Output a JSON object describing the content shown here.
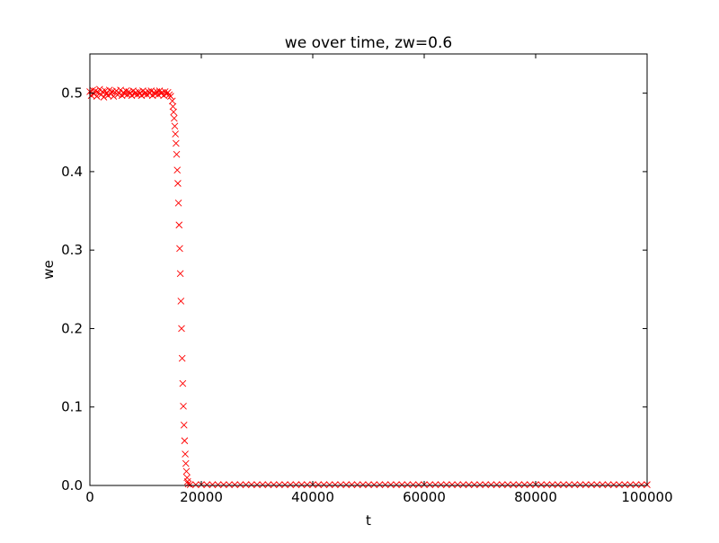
{
  "chart_data": {
    "type": "scatter",
    "title": "we over time, zw=0.6",
    "xlabel": "t",
    "ylabel": "we",
    "xlim": [
      0,
      100000
    ],
    "ylim": [
      0,
      0.55
    ],
    "xticks": [
      0,
      20000,
      40000,
      60000,
      80000,
      100000
    ],
    "xtick_labels": [
      "0",
      "20000",
      "40000",
      "60000",
      "80000",
      "100000"
    ],
    "yticks": [
      0,
      0.1,
      0.2,
      0.3,
      0.4,
      0.5
    ],
    "ytick_labels": [
      "0.0",
      "0.1",
      "0.2",
      "0.3",
      "0.4",
      "0.5"
    ],
    "grid": false,
    "marker": "x",
    "color": "#ff0000",
    "series": [
      {
        "t": [
          0,
          250,
          500,
          750,
          1000,
          1250,
          1500,
          1750,
          2000,
          2250,
          2500,
          2750,
          3000,
          3250,
          3500,
          3750,
          4000,
          4250,
          4500,
          4750,
          5000,
          5250,
          5500,
          5750,
          6000,
          6250,
          6500,
          6750,
          7000,
          7250,
          7500,
          7750,
          8000,
          8250,
          8500,
          8750,
          9000,
          9250,
          9500,
          9750,
          10000,
          10250,
          10500,
          10750,
          11000,
          11250,
          11500,
          11750,
          12000,
          12250,
          12500,
          12750,
          13000,
          13250,
          13500,
          13750,
          14000,
          14250,
          14500,
          14800,
          14910,
          15020,
          15130,
          15240,
          15350,
          15460,
          15570,
          15680,
          15790,
          15900,
          16010,
          16120,
          16230,
          16340,
          16450,
          16560,
          16670,
          16780,
          16890,
          17000,
          17110,
          17220,
          17330,
          17440,
          17550,
          17660,
          18000,
          19000,
          20000,
          21000,
          22000,
          23000,
          24000,
          25000,
          26000,
          27000,
          28000,
          29000,
          30000,
          31000,
          32000,
          33000,
          34000,
          35000,
          36000,
          37000,
          38000,
          39000,
          40000,
          41000,
          42000,
          43000,
          44000,
          45000,
          46000,
          47000,
          48000,
          49000,
          50000,
          51000,
          52000,
          53000,
          54000,
          55000,
          56000,
          57000,
          58000,
          59000,
          60000,
          61000,
          62000,
          63000,
          64000,
          65000,
          66000,
          67000,
          68000,
          69000,
          70000,
          71000,
          72000,
          73000,
          74000,
          75000,
          76000,
          77000,
          78000,
          79000,
          80000,
          81000,
          82000,
          83000,
          84000,
          85000,
          86000,
          87000,
          88000,
          89000,
          90000,
          91000,
          92000,
          93000,
          94000,
          95000,
          96000,
          97000,
          98000,
          99000,
          100000
        ],
        "we": [
          0.502,
          0.497,
          0.504,
          0.499,
          0.503,
          0.496,
          0.501,
          0.505,
          0.498,
          0.502,
          0.495,
          0.503,
          0.5,
          0.497,
          0.504,
          0.499,
          0.502,
          0.496,
          0.501,
          0.503,
          0.498,
          0.5,
          0.504,
          0.497,
          0.501,
          0.499,
          0.503,
          0.498,
          0.502,
          0.5,
          0.497,
          0.503,
          0.499,
          0.501,
          0.498,
          0.502,
          0.5,
          0.497,
          0.503,
          0.499,
          0.501,
          0.498,
          0.502,
          0.5,
          0.503,
          0.497,
          0.501,
          0.499,
          0.502,
          0.498,
          0.503,
          0.5,
          0.501,
          0.497,
          0.502,
          0.499,
          0.501,
          0.498,
          0.496,
          0.49,
          0.483,
          0.476,
          0.468,
          0.458,
          0.448,
          0.436,
          0.422,
          0.402,
          0.385,
          0.36,
          0.332,
          0.302,
          0.27,
          0.235,
          0.2,
          0.162,
          0.13,
          0.101,
          0.077,
          0.057,
          0.04,
          0.028,
          0.018,
          0.01,
          0.005,
          0.002,
          0.001,
          0.001,
          0.001,
          0.001,
          0.001,
          0.001,
          0.001,
          0.001,
          0.001,
          0.001,
          0.001,
          0.001,
          0.001,
          0.001,
          0.001,
          0.001,
          0.001,
          0.001,
          0.001,
          0.001,
          0.001,
          0.001,
          0.001,
          0.001,
          0.001,
          0.001,
          0.001,
          0.001,
          0.001,
          0.001,
          0.001,
          0.001,
          0.001,
          0.001,
          0.001,
          0.001,
          0.001,
          0.001,
          0.001,
          0.001,
          0.001,
          0.001,
          0.001,
          0.001,
          0.001,
          0.001,
          0.001,
          0.001,
          0.001,
          0.001,
          0.001,
          0.001,
          0.001,
          0.001,
          0.001,
          0.001,
          0.001,
          0.001,
          0.001,
          0.001,
          0.001,
          0.001,
          0.001,
          0.001,
          0.001,
          0.001,
          0.001,
          0.001,
          0.001,
          0.001,
          0.001,
          0.001,
          0.001,
          0.001,
          0.001,
          0.001,
          0.001,
          0.001,
          0.001,
          0.001,
          0.001,
          0.001,
          0.001,
          0.001,
          0.001,
          0.001,
          0.001,
          0.001,
          0.001,
          0.001,
          0.001,
          0.001,
          0.001
        ]
      }
    ]
  }
}
